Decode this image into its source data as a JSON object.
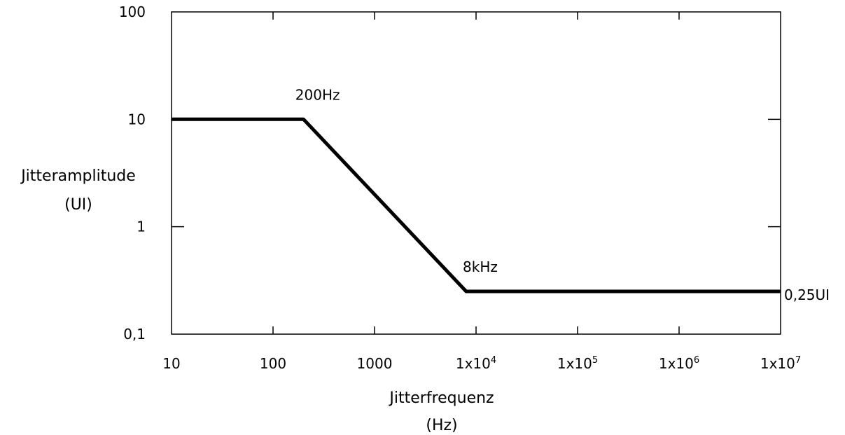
{
  "chart_data": {
    "type": "line",
    "title": "",
    "xlabel_line1": "Jitterfrequenz",
    "xlabel_line2": "(Hz)",
    "ylabel_line1": "Jitteramplitude",
    "ylabel_line2": "(UI)",
    "x_scale": "log",
    "y_scale": "log",
    "xlim": [
      10,
      10000000
    ],
    "ylim": [
      0.1,
      100
    ],
    "grid": false,
    "legend": "none",
    "line_color": "#000000",
    "series": [
      {
        "x": [
          10,
          200,
          8000,
          10000000
        ],
        "y": [
          10,
          10,
          0.25,
          0.25
        ]
      }
    ],
    "x_ticks": [
      {
        "value": 10,
        "label": "10",
        "base": "",
        "exp": ""
      },
      {
        "value": 100,
        "label": "100",
        "base": "",
        "exp": ""
      },
      {
        "value": 1000,
        "label": "1000",
        "base": "",
        "exp": ""
      },
      {
        "value": 10000,
        "label": "",
        "base": "1x10",
        "exp": "4"
      },
      {
        "value": 100000,
        "label": "",
        "base": "1x10",
        "exp": "5"
      },
      {
        "value": 1000000,
        "label": "",
        "base": "1x10",
        "exp": "6"
      },
      {
        "value": 10000000,
        "label": "",
        "base": "1x10",
        "exp": "7"
      }
    ],
    "y_ticks": [
      {
        "value": 100,
        "label": "100"
      },
      {
        "value": 10,
        "label": "10"
      },
      {
        "value": 1,
        "label": "1"
      },
      {
        "value": 0.1,
        "label": "0,1"
      }
    ],
    "annotations": [
      {
        "text": "200Hz",
        "x": 200,
        "y": 10,
        "anchor": "above"
      },
      {
        "text": "8kHz",
        "x": 8000,
        "y": 0.25,
        "anchor": "above"
      },
      {
        "text": "0,25UI",
        "x": 10000000,
        "y": 0.25,
        "anchor": "right"
      }
    ]
  }
}
